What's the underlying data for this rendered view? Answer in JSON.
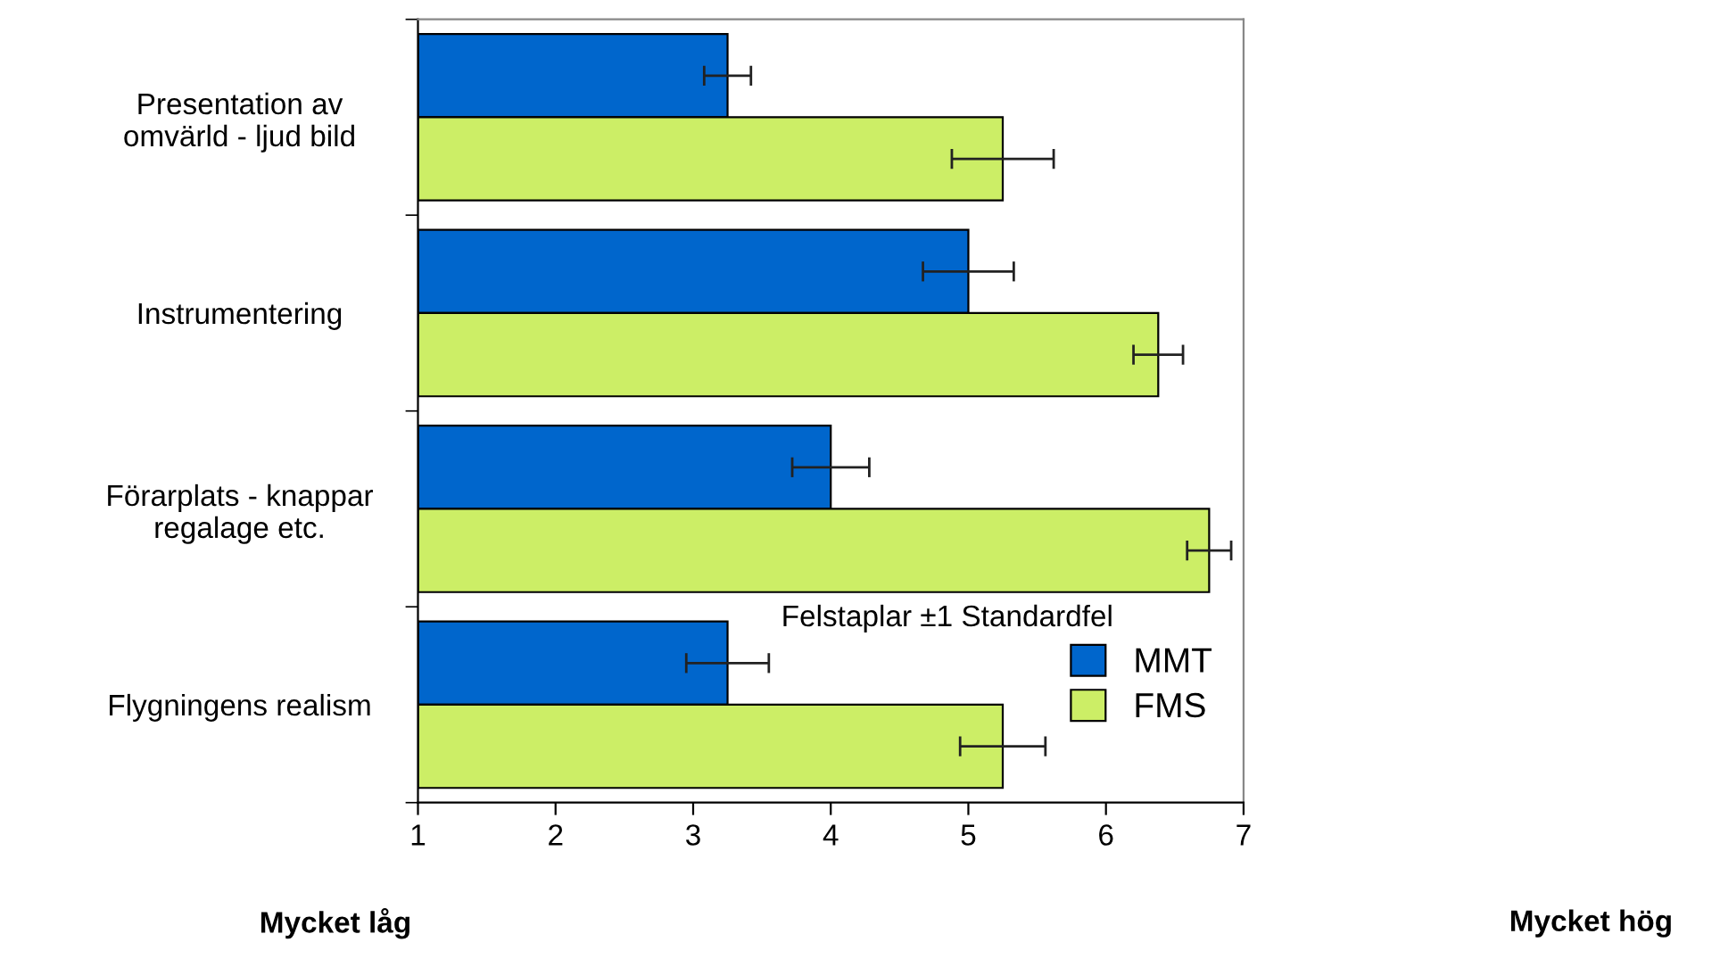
{
  "chart_data": {
    "type": "bar",
    "orientation": "horizontal",
    "categories": [
      "Presentation av\nomvärld - ljud bild",
      "Instrumentering",
      "Förarplats - knappar\nregalage etc.",
      "Flygningens realism"
    ],
    "series": [
      {
        "name": "MMT",
        "color": "#0066cc",
        "values": [
          3.25,
          5.0,
          4.0,
          3.25
        ],
        "errors": [
          0.17,
          0.33,
          0.28,
          0.3
        ]
      },
      {
        "name": "FMS",
        "color": "#ccee66",
        "values": [
          5.25,
          6.38,
          6.75,
          5.25
        ],
        "errors": [
          0.37,
          0.18,
          0.16,
          0.31
        ]
      }
    ],
    "xlim": [
      1,
      7
    ],
    "xticks": [
      1,
      2,
      3,
      4,
      5,
      6,
      7
    ],
    "annotations": [
      "Felstaplar ±1 Standardfel",
      "Mycket låg",
      "Mycket hög"
    ],
    "legend": "bottom right",
    "grid": false
  }
}
